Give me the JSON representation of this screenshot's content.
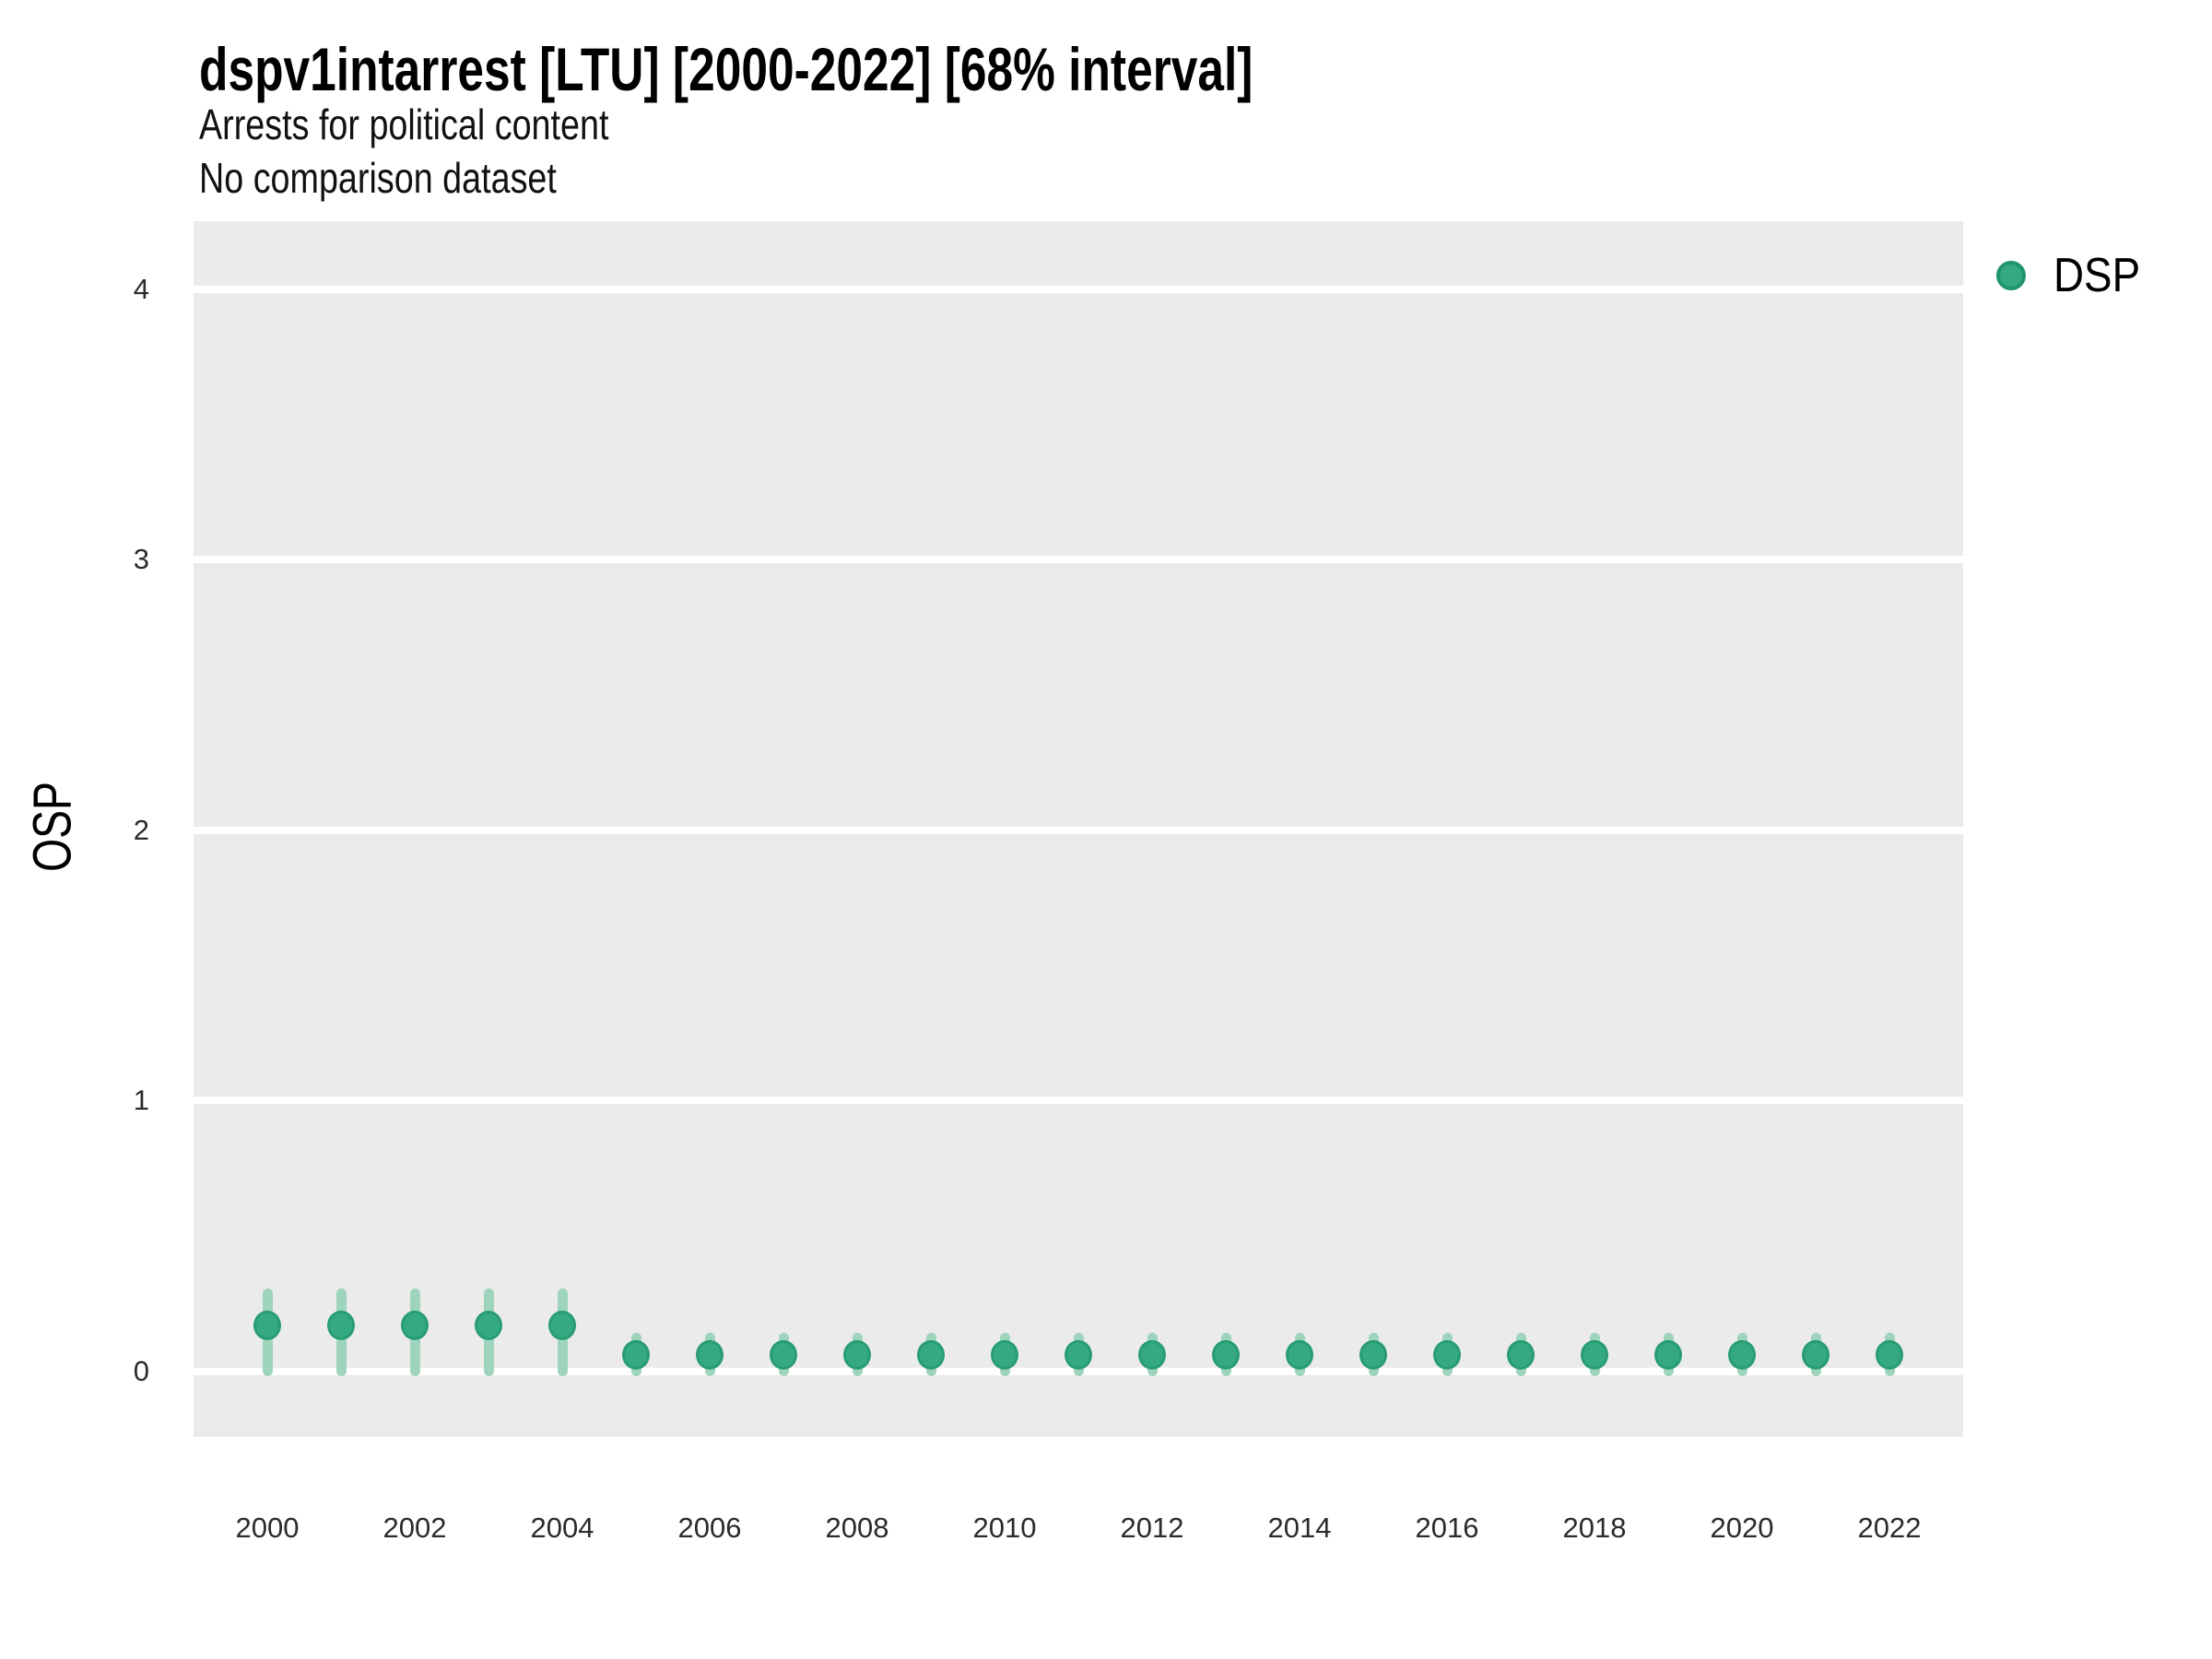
{
  "header": {
    "title": "dspv1intarrest [LTU] [2000-2022] [68% interval]",
    "subtitle1": "Arrests for political content",
    "subtitle2": "No comparison dataset"
  },
  "axes": {
    "y_label": "OSP"
  },
  "legend": {
    "label": "DSP",
    "marker_fill": "#34A983",
    "marker_ring": "#1F9568"
  },
  "colors": {
    "panel_background": "#EBEBEB",
    "gridline": "#FFFFFF",
    "point_fill": "#34A983",
    "point_ring": "#289C74",
    "interval_bar": "#9ED4BC",
    "text": "#000000"
  },
  "chart_data": {
    "type": "scatter",
    "title": "dspv1intarrest [LTU] [2000-2022] [68% interval]",
    "subtitle": [
      "Arrests for political content",
      "No comparison dataset"
    ],
    "xlabel": "",
    "ylabel": "OSP",
    "interval": "68%",
    "legend_position": "right",
    "grid": "major-horizontal-only",
    "xlim": [
      1999.0,
      2023.0
    ],
    "ylim": [
      -0.242,
      4.251
    ],
    "x_ticks": [
      2000,
      2002,
      2004,
      2006,
      2008,
      2010,
      2012,
      2014,
      2016,
      2018,
      2020,
      2022
    ],
    "y_ticks": [
      0,
      1,
      2,
      3,
      4
    ],
    "series": [
      {
        "name": "DSP",
        "x": [
          2000,
          2001,
          2002,
          2003,
          2004,
          2005,
          2006,
          2007,
          2008,
          2009,
          2010,
          2011,
          2012,
          2013,
          2014,
          2015,
          2016,
          2017,
          2018,
          2019,
          2020,
          2021,
          2022
        ],
        "y": [
          0.17,
          0.17,
          0.17,
          0.17,
          0.17,
          0.06,
          0.06,
          0.06,
          0.06,
          0.06,
          0.06,
          0.06,
          0.06,
          0.06,
          0.06,
          0.06,
          0.06,
          0.06,
          0.06,
          0.06,
          0.06,
          0.06,
          0.06
        ],
        "lo": [
          0.0,
          0.0,
          0.0,
          0.0,
          0.0,
          0.0,
          0.0,
          0.0,
          0.0,
          0.0,
          0.0,
          0.0,
          0.0,
          0.0,
          0.0,
          0.0,
          0.0,
          0.0,
          0.0,
          0.0,
          0.0,
          0.0,
          0.0
        ],
        "hi": [
          0.29,
          0.29,
          0.29,
          0.29,
          0.29,
          0.125,
          0.125,
          0.125,
          0.125,
          0.125,
          0.125,
          0.125,
          0.125,
          0.125,
          0.125,
          0.125,
          0.125,
          0.125,
          0.125,
          0.125,
          0.125,
          0.125,
          0.125
        ]
      }
    ]
  }
}
